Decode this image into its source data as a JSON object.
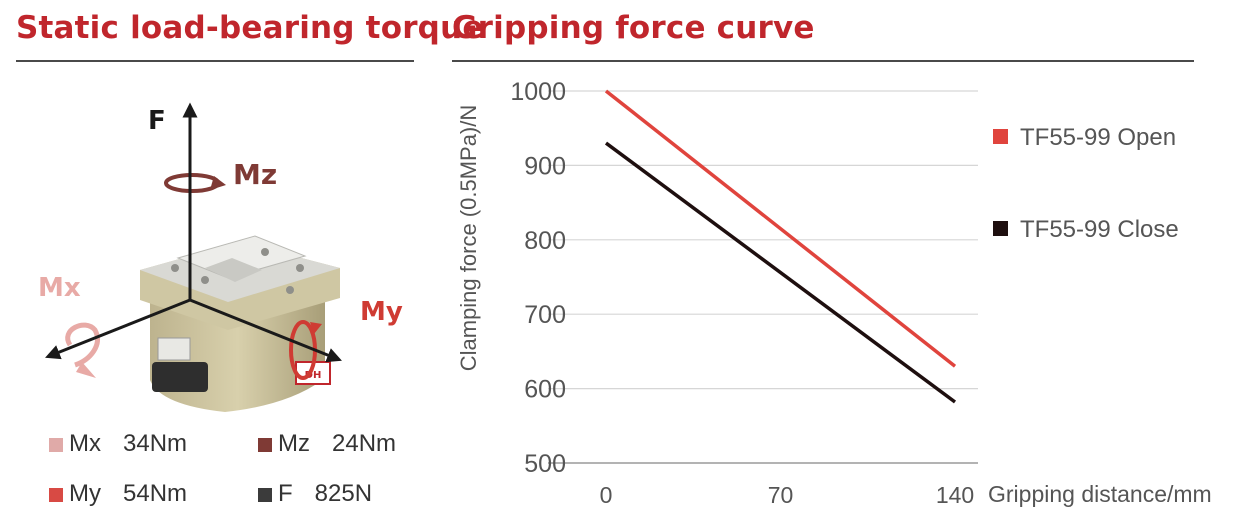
{
  "left": {
    "title": "Static load-bearing torque",
    "axes": {
      "f": "F",
      "mz": "Mz",
      "mx": "Mx",
      "my": "My"
    },
    "specs": [
      {
        "name": "Mx",
        "value": "34Nm",
        "color": "#e0aaa8"
      },
      {
        "name": "Mz",
        "value": "24Nm",
        "color": "#7f3a35"
      },
      {
        "name": "My",
        "value": "54Nm",
        "color": "#d84a44"
      },
      {
        "name": "F",
        "value": "825N",
        "color": "#3b3b3b"
      }
    ],
    "colors": {
      "mx": "#e8aaa6",
      "mz": "#7f3a35",
      "my": "#cf3b33",
      "f": "#1a1a1a"
    }
  },
  "right": {
    "title": "Gripping force curve"
  },
  "chart_data": {
    "type": "line",
    "title": "Gripping force curve",
    "xlabel": "Gripping distance/mm",
    "ylabel": "Clamping force (0.5MPa)/N",
    "x": [
      0,
      140
    ],
    "xticks": [
      "0",
      "70",
      "140"
    ],
    "ylim": [
      500,
      1000
    ],
    "yticks": [
      "500",
      "600",
      "700",
      "800",
      "900",
      "1000"
    ],
    "grid": "horizontal",
    "legend_position": "right",
    "series": [
      {
        "name": "TF55-99 Open",
        "values": [
          1000,
          630
        ],
        "color": "#e0443d"
      },
      {
        "name": "TF55-99 Close",
        "values": [
          930,
          582
        ],
        "color": "#1e0f0f"
      }
    ]
  }
}
